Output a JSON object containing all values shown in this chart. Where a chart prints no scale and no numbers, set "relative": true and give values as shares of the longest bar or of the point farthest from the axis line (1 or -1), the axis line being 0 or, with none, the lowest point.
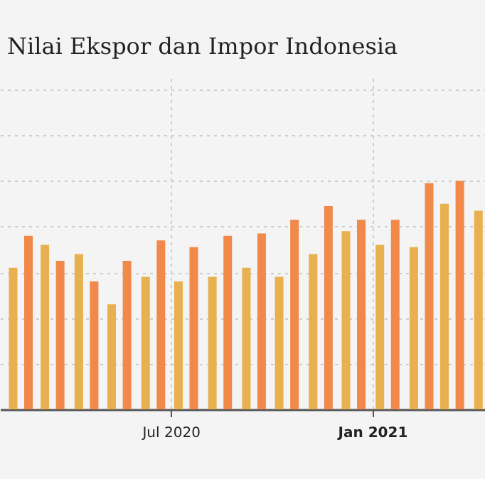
{
  "chart_data": {
    "type": "bar",
    "title": "Nilai Ekspor dan Impor Indonesia",
    "relative": true,
    "series": [
      {
        "color": "#e8b04f",
        "x": [
          "2020-02-08",
          "2020-03-08",
          "2020-04-08",
          "2020-05-08",
          "2020-06-08",
          "2020-07-08",
          "2020-08-08",
          "2020-09-08",
          "2020-10-08",
          "2020-11-08",
          "2020-12-08",
          "2021-01-08",
          "2021-02-08",
          "2021-03-08",
          "2021-04-08"
        ],
        "values": [
          0.62,
          0.72,
          0.68,
          0.46,
          0.58,
          0.56,
          0.58,
          0.62,
          0.58,
          0.68,
          0.78,
          0.72,
          0.71,
          0.9,
          0.87
        ]
      },
      {
        "color": "#f0894a",
        "x": [
          "2020-02-22",
          "2020-03-22",
          "2020-04-22",
          "2020-05-22",
          "2020-06-22",
          "2020-07-22",
          "2020-08-22",
          "2020-09-22",
          "2020-10-22",
          "2020-11-22",
          "2020-12-22",
          "2021-01-22",
          "2021-02-22",
          "2021-03-22"
        ],
        "values": [
          0.76,
          0.65,
          0.56,
          0.65,
          0.74,
          0.71,
          0.76,
          0.77,
          0.83,
          0.89,
          0.83,
          0.83,
          0.99,
          1.0
        ]
      }
    ],
    "xlim": [
      "2020-01-27",
      "2021-04-14"
    ],
    "xticks": [
      {
        "value": "2020-07",
        "label": "Jul 2020"
      },
      {
        "value": "2021-01",
        "label": "Jan 2021"
      }
    ],
    "grid": true
  }
}
